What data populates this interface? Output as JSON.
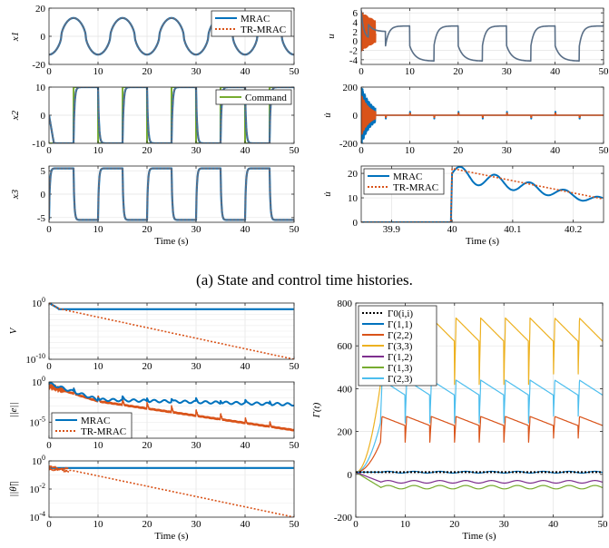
{
  "caption": "(a) State and control time histories.",
  "colors": {
    "mrac": "#0072BD",
    "trmrac": "#D95319",
    "command": "#77AC30",
    "gamma0": "#000000",
    "g11": "#0072BD",
    "g22": "#D95319",
    "g33": "#EDB120",
    "g12": "#7E2F8E",
    "g13": "#77AC30",
    "g23": "#4DBEEE"
  },
  "chart_data": [
    {
      "id": "x1",
      "type": "line",
      "ylabel": "x_1",
      "xlim": [
        0,
        50
      ],
      "ylim": [
        -20,
        20
      ],
      "xticks": [
        "0",
        "10",
        "20",
        "30",
        "40",
        "50"
      ],
      "yticks": [
        "-20",
        "0",
        "20"
      ],
      "legend": {
        "position": "top-right",
        "entries": [
          "MRAC",
          "TR-MRAC"
        ]
      },
      "series": [
        {
          "name": "MRAC",
          "x": [
            0,
            2,
            5,
            7,
            10,
            12,
            15,
            17,
            20,
            22,
            25,
            27,
            30,
            32,
            35,
            37,
            40,
            42,
            45,
            47,
            50
          ],
          "y": [
            0,
            -13,
            13,
            -13,
            13,
            -13,
            13,
            -13,
            13,
            -13,
            13,
            -13,
            13,
            -13,
            13,
            -13,
            13,
            -13,
            13,
            -13,
            13
          ]
        },
        {
          "name": "TR-MRAC",
          "x": [
            0,
            2,
            5,
            7,
            10,
            12,
            15,
            17,
            20,
            22,
            25,
            27,
            30,
            32,
            35,
            37,
            40,
            42,
            45,
            47,
            50
          ],
          "y": [
            0,
            -13,
            13,
            -13,
            13,
            -13,
            13,
            -13,
            13,
            -13,
            13,
            -13,
            13,
            -13,
            13,
            -13,
            13,
            -13,
            13,
            -13,
            13
          ]
        }
      ]
    },
    {
      "id": "x2",
      "type": "line",
      "ylabel": "x_2",
      "xlim": [
        0,
        50
      ],
      "ylim": [
        -10,
        10
      ],
      "xticks": [
        "0",
        "10",
        "20",
        "30",
        "40",
        "50"
      ],
      "yticks": [
        "-10",
        "0",
        "10"
      ],
      "legend": {
        "position": "top-right",
        "entries": [
          "Command"
        ]
      },
      "command_period": 10,
      "amplitude": 10
    },
    {
      "id": "x3",
      "type": "line",
      "ylabel": "x_3",
      "xlabel": "Time (s)",
      "xlim": [
        0,
        50
      ],
      "ylim": [
        -6,
        6
      ],
      "xticks": [
        "0",
        "10",
        "20",
        "30",
        "40",
        "50"
      ],
      "yticks": [
        "-5",
        "0",
        "5"
      ],
      "amplitude": 5.3
    },
    {
      "id": "u",
      "type": "line",
      "ylabel": "u",
      "xlim": [
        0,
        50
      ],
      "ylim": [
        -5,
        7
      ],
      "xticks": [
        "0",
        "10",
        "20",
        "30",
        "40",
        "50"
      ],
      "yticks": [
        "-4",
        "-2",
        "0",
        "2",
        "4",
        "6"
      ]
    },
    {
      "id": "udot",
      "type": "line",
      "ylabel": "u̇",
      "xlim": [
        0,
        50
      ],
      "ylim": [
        -200,
        200
      ],
      "xticks": [
        "0",
        "10",
        "20",
        "30",
        "40",
        "50"
      ],
      "yticks": [
        "-200",
        "0",
        "200"
      ]
    },
    {
      "id": "udot_zoom",
      "type": "line",
      "ylabel": "u̇",
      "xlabel": "Time (s)",
      "xlim": [
        39.85,
        40.25
      ],
      "ylim": [
        0,
        23
      ],
      "xticks": [
        "39.9",
        "40",
        "40.1",
        "40.2"
      ],
      "yticks": [
        "0",
        "10",
        "20"
      ],
      "legend": {
        "position": "top-left",
        "entries": [
          "MRAC",
          "TR-MRAC"
        ]
      }
    },
    {
      "id": "V",
      "type": "line",
      "ylabel": "V",
      "xlim": [
        0,
        50
      ],
      "log_y": true,
      "ylim_exp": [
        -10,
        0
      ],
      "xticks": [
        "0",
        "10",
        "20",
        "30",
        "40",
        "50"
      ],
      "yticks": [
        "10^0",
        "10^-10"
      ],
      "series": [
        {
          "name": "MRAC",
          "x": [
            0,
            2,
            5,
            50
          ],
          "y_exp": [
            0,
            -1,
            -1.1,
            -1.1
          ]
        },
        {
          "name": "TR-MRAC",
          "x": [
            0,
            2,
            50
          ],
          "y_exp": [
            0,
            -1,
            -10
          ]
        }
      ]
    },
    {
      "id": "e",
      "type": "line",
      "ylabel": "||e||",
      "xlim": [
        0,
        50
      ],
      "log_y": true,
      "ylim_exp": [
        -7,
        0
      ],
      "xticks": [
        "0",
        "10",
        "20",
        "30",
        "40",
        "50"
      ],
      "yticks": [
        "10^0",
        "10^-5"
      ],
      "legend": {
        "position": "bottom-left",
        "entries": [
          "MRAC",
          "TR-MRAC"
        ]
      },
      "series": [
        {
          "name": "MRAC",
          "x": [
            0,
            10,
            20,
            30,
            40,
            50
          ],
          "y_exp": [
            -0.2,
            -2.2,
            -2.8,
            -2.7,
            -2.8,
            -2.9
          ]
        },
        {
          "name": "TR-MRAC",
          "x": [
            0,
            10,
            20,
            30,
            40,
            50
          ],
          "y_exp": [
            -0.5,
            -2.4,
            -3.3,
            -4.2,
            -5.0,
            -6.0
          ]
        }
      ]
    },
    {
      "id": "theta",
      "type": "line",
      "ylabel": "||θ̃||",
      "xlabel": "Time (s)",
      "xlim": [
        0,
        50
      ],
      "log_y": true,
      "ylim_exp": [
        -4,
        0
      ],
      "xticks": [
        "0",
        "10",
        "20",
        "30",
        "40",
        "50"
      ],
      "yticks": [
        "10^0",
        "10^-2",
        "10^-4"
      ],
      "series": [
        {
          "name": "MRAC",
          "x": [
            0,
            50
          ],
          "y_exp": [
            -0.5,
            -0.5
          ]
        },
        {
          "name": "TR-MRAC",
          "x": [
            0,
            5,
            50
          ],
          "y_exp": [
            -0.5,
            -0.7,
            -4
          ]
        }
      ]
    },
    {
      "id": "gamma",
      "type": "line",
      "ylabel": "Γ(t)",
      "xlabel": "Time (s)",
      "xlim": [
        0,
        50
      ],
      "ylim": [
        -200,
        800
      ],
      "xticks": [
        "0",
        "10",
        "20",
        "30",
        "40",
        "50"
      ],
      "yticks": [
        "-200",
        "0",
        "200",
        "400",
        "600",
        "800"
      ],
      "legend": {
        "position": "top-left",
        "entries": [
          "Γ0(i,i)",
          "Γ(1,1)",
          "Γ(2,2)",
          "Γ(3,3)",
          "Γ(1,2)",
          "Γ(1,3)",
          "Γ(2,3)"
        ]
      },
      "series": [
        {
          "name": "Γ0(i,i)",
          "baseline": 10
        },
        {
          "name": "Γ(1,1)",
          "baseline": 10
        },
        {
          "name": "Γ(2,2)",
          "low": 150,
          "high": 270
        },
        {
          "name": "Γ(3,3)",
          "low": 420,
          "high": 730
        },
        {
          "name": "Γ(1,2)",
          "baseline": -35
        },
        {
          "name": "Γ(1,3)",
          "baseline": -60
        },
        {
          "name": "Γ(2,3)",
          "low": 240,
          "high": 440
        }
      ]
    }
  ]
}
